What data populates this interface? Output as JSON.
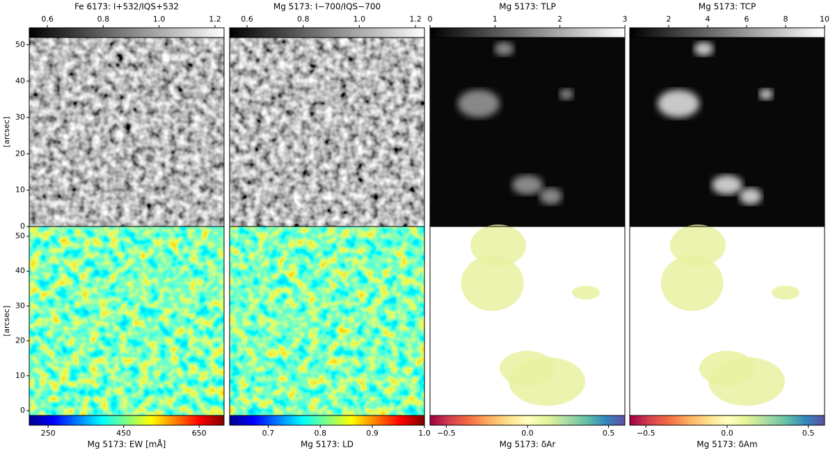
{
  "chart_data": [
    {
      "type": "heatmap",
      "title": "Fe 6173: I+532/IQS+532",
      "cmap": "gray",
      "colorbar_location": "top",
      "clim": [
        0.535,
        1.2325
      ],
      "cticks": [
        0.6,
        0.8,
        {
          "value": 1.0,
          "label": "1.0"
        },
        1.2
      ],
      "ylabel": "[arcsec]",
      "ylim": [
        0,
        52
      ],
      "yticks": [
        0,
        10,
        20,
        30,
        40,
        50
      ]
    },
    {
      "type": "heatmap",
      "title": "Mg 5173: I−700/IQS−700",
      "cmap": "gray",
      "colorbar_location": "top",
      "clim": [
        0.538,
        1.232
      ],
      "cticks": [
        0.6,
        0.8,
        {
          "value": 1.0,
          "label": "1.0"
        },
        1.2
      ]
    },
    {
      "type": "heatmap",
      "title": "Mg 5173: TLP",
      "cmap": "gray",
      "colorbar_location": "top",
      "clim": [
        0,
        3
      ],
      "cticks": [
        0,
        1,
        2,
        3
      ]
    },
    {
      "type": "heatmap",
      "title": "Mg 5173: TCP",
      "cmap": "gray",
      "colorbar_location": "top",
      "clim": [
        0,
        10
      ],
      "cticks": [
        2,
        4,
        6,
        8,
        10
      ]
    },
    {
      "type": "heatmap",
      "title": "Mg 5173: EW [mÅ]",
      "cmap": "jet",
      "colorbar_location": "bottom",
      "clim": [
        200,
        716
      ],
      "cticks": [
        250,
        450,
        650
      ],
      "ylabel": "[arcsec]",
      "ylim": [
        -1.4,
        52.8
      ],
      "yticks": [
        0,
        10,
        20,
        30,
        40,
        50
      ]
    },
    {
      "type": "heatmap",
      "title": "Mg 5173: LD",
      "cmap": "jet",
      "colorbar_location": "bottom",
      "clim": [
        0.626,
        1.0
      ],
      "cticks": [
        0.7,
        0.8,
        0.9,
        {
          "value": 1.0,
          "label": "1.0"
        }
      ]
    },
    {
      "type": "heatmap",
      "title": "Mg 5173: δAr",
      "cmap": "spectral",
      "colorbar_location": "bottom",
      "clim": [
        -0.6,
        0.6
      ],
      "cticks": [
        {
          "value": -0.5,
          "label": "−0.5"
        },
        {
          "value": 0.0,
          "label": "0.0"
        },
        0.5
      ]
    },
    {
      "type": "heatmap",
      "title": "Mg 5173: δAm",
      "cmap": "spectral",
      "colorbar_location": "bottom",
      "clim": [
        -0.6,
        0.6
      ],
      "cticks": [
        {
          "value": -0.5,
          "label": "−0.5"
        },
        {
          "value": 0.0,
          "label": "0.0"
        },
        0.5
      ]
    }
  ]
}
